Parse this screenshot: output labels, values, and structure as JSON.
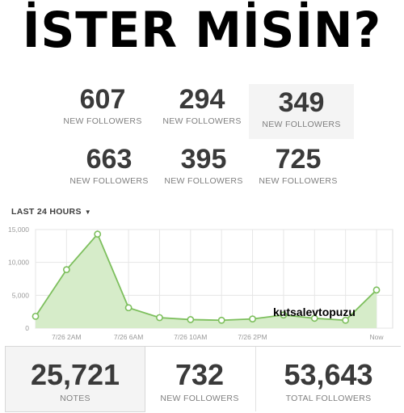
{
  "banner": {
    "title": "İSTER MİSİN?"
  },
  "stats": [
    {
      "value": "607",
      "label": "NEW FOLLOWERS"
    },
    {
      "value": "294",
      "label": "NEW FOLLOWERS"
    },
    {
      "value": "349",
      "label": "NEW FOLLOWERS"
    },
    {
      "value": "663",
      "label": "NEW FOLLOWERS"
    },
    {
      "value": "395",
      "label": "NEW FOLLOWERS"
    },
    {
      "value": "725",
      "label": "NEW FOLLOWERS"
    }
  ],
  "range_selector": {
    "label": "LAST 24 HOURS",
    "caret": "▼"
  },
  "chart_data": {
    "type": "area",
    "x": [
      "7/26 12AM",
      "7/26 2AM",
      "7/26 4AM",
      "7/26 6AM",
      "7/26 8AM",
      "7/26 10AM",
      "7/26 12PM",
      "7/26 2PM",
      "7/26 4PM",
      "7/26 6PM",
      "7/26 8PM",
      "Now"
    ],
    "x_tick_labels": [
      "7/26 2AM",
      "7/26 6AM",
      "7/26 10AM",
      "7/26 2PM",
      "Now"
    ],
    "y_tick_labels": [
      "0",
      "5,000",
      "10,000",
      "15,000"
    ],
    "values": [
      1800,
      8900,
      14300,
      3100,
      1600,
      1300,
      1200,
      1400,
      2000,
      1500,
      1200,
      5800
    ],
    "ylim": [
      0,
      15000
    ],
    "grid": true,
    "colors": {
      "line": "#7dbf5d",
      "fill": "#d6ecc9"
    }
  },
  "watermark": "kutsalevtopuzu",
  "footer": [
    {
      "value": "25,721",
      "label": "NOTES"
    },
    {
      "value": "732",
      "label": "NEW FOLLOWERS"
    },
    {
      "value": "53,643",
      "label": "TOTAL FOLLOWERS"
    }
  ]
}
